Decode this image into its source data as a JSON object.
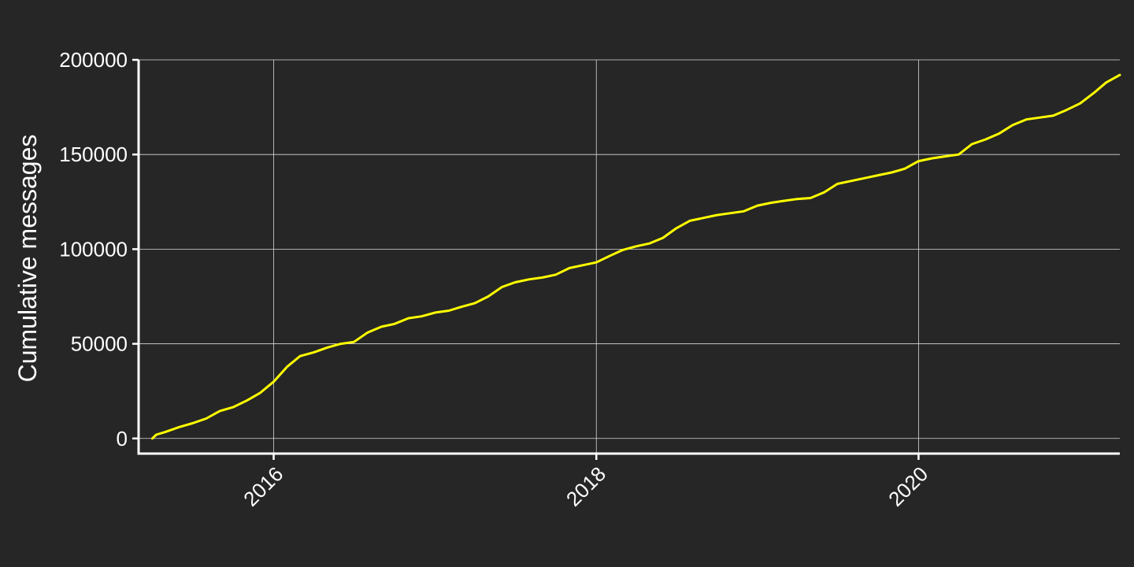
{
  "colors": {
    "background": "#262626",
    "grid": "#d9d9d9",
    "axis": "#ffffff",
    "line": "#ffff00"
  },
  "chart_data": {
    "type": "line",
    "title": "",
    "xlabel": "",
    "ylabel": "Cumulative messages",
    "x_scale": "date",
    "xlim": [
      "2015-03-01",
      "2021-04-01"
    ],
    "ylim": [
      -8000,
      200000
    ],
    "x_ticks": [
      {
        "date": "2016-01-01",
        "label": "2016"
      },
      {
        "date": "2018-01-01",
        "label": "2018"
      },
      {
        "date": "2020-01-01",
        "label": "2020"
      }
    ],
    "y_ticks": [
      {
        "value": 0,
        "label": "0"
      },
      {
        "value": 50000,
        "label": "50000"
      },
      {
        "value": 100000,
        "label": "100000"
      },
      {
        "value": 150000,
        "label": "150000"
      },
      {
        "value": 200000,
        "label": "200000"
      }
    ],
    "grid": true,
    "legend": "none",
    "series": [
      {
        "points": [
          [
            "2015-04-01",
            0
          ],
          [
            "2015-04-10",
            2000
          ],
          [
            "2015-05-01",
            3500
          ],
          [
            "2015-06-01",
            6000
          ],
          [
            "2015-07-01",
            8000
          ],
          [
            "2015-08-01",
            10500
          ],
          [
            "2015-09-01",
            14500
          ],
          [
            "2015-10-01",
            16500
          ],
          [
            "2015-11-01",
            20000
          ],
          [
            "2015-12-01",
            24000
          ],
          [
            "2016-01-01",
            30000
          ],
          [
            "2016-02-01",
            38000
          ],
          [
            "2016-03-01",
            43500
          ],
          [
            "2016-04-01",
            45500
          ],
          [
            "2016-05-01",
            48000
          ],
          [
            "2016-06-01",
            50000
          ],
          [
            "2016-07-01",
            51000
          ],
          [
            "2016-08-01",
            56000
          ],
          [
            "2016-09-01",
            59000
          ],
          [
            "2016-10-01",
            60500
          ],
          [
            "2016-11-01",
            63500
          ],
          [
            "2016-12-01",
            64500
          ],
          [
            "2017-01-01",
            66500
          ],
          [
            "2017-02-01",
            67500
          ],
          [
            "2017-03-01",
            69500
          ],
          [
            "2017-04-01",
            71500
          ],
          [
            "2017-05-01",
            75000
          ],
          [
            "2017-06-01",
            80000
          ],
          [
            "2017-07-01",
            82500
          ],
          [
            "2017-08-01",
            84000
          ],
          [
            "2017-09-01",
            85000
          ],
          [
            "2017-10-01",
            86500
          ],
          [
            "2017-11-01",
            90000
          ],
          [
            "2017-12-01",
            91500
          ],
          [
            "2018-01-01",
            93000
          ],
          [
            "2018-02-01",
            96500
          ],
          [
            "2018-03-01",
            99500
          ],
          [
            "2018-04-01",
            101500
          ],
          [
            "2018-05-01",
            103000
          ],
          [
            "2018-06-01",
            106000
          ],
          [
            "2018-07-01",
            111000
          ],
          [
            "2018-08-01",
            115000
          ],
          [
            "2018-09-01",
            116500
          ],
          [
            "2018-10-01",
            118000
          ],
          [
            "2018-11-01",
            119000
          ],
          [
            "2018-12-01",
            120000
          ],
          [
            "2019-01-01",
            123000
          ],
          [
            "2019-02-01",
            124500
          ],
          [
            "2019-03-01",
            125500
          ],
          [
            "2019-04-01",
            126500
          ],
          [
            "2019-05-01",
            127000
          ],
          [
            "2019-06-01",
            130000
          ],
          [
            "2019-07-01",
            134500
          ],
          [
            "2019-08-01",
            136000
          ],
          [
            "2019-09-01",
            137500
          ],
          [
            "2019-10-01",
            139000
          ],
          [
            "2019-11-01",
            140500
          ],
          [
            "2019-12-01",
            142500
          ],
          [
            "2020-01-01",
            146500
          ],
          [
            "2020-02-01",
            148000
          ],
          [
            "2020-03-01",
            149000
          ],
          [
            "2020-04-01",
            150000
          ],
          [
            "2020-05-01",
            155500
          ],
          [
            "2020-06-01",
            158000
          ],
          [
            "2020-07-01",
            161000
          ],
          [
            "2020-08-01",
            165500
          ],
          [
            "2020-09-01",
            168500
          ],
          [
            "2020-10-01",
            169500
          ],
          [
            "2020-11-01",
            170500
          ],
          [
            "2020-12-01",
            173500
          ],
          [
            "2021-01-01",
            177000
          ],
          [
            "2021-02-01",
            182500
          ],
          [
            "2021-03-01",
            188000
          ],
          [
            "2021-04-01",
            192000
          ]
        ]
      }
    ]
  }
}
